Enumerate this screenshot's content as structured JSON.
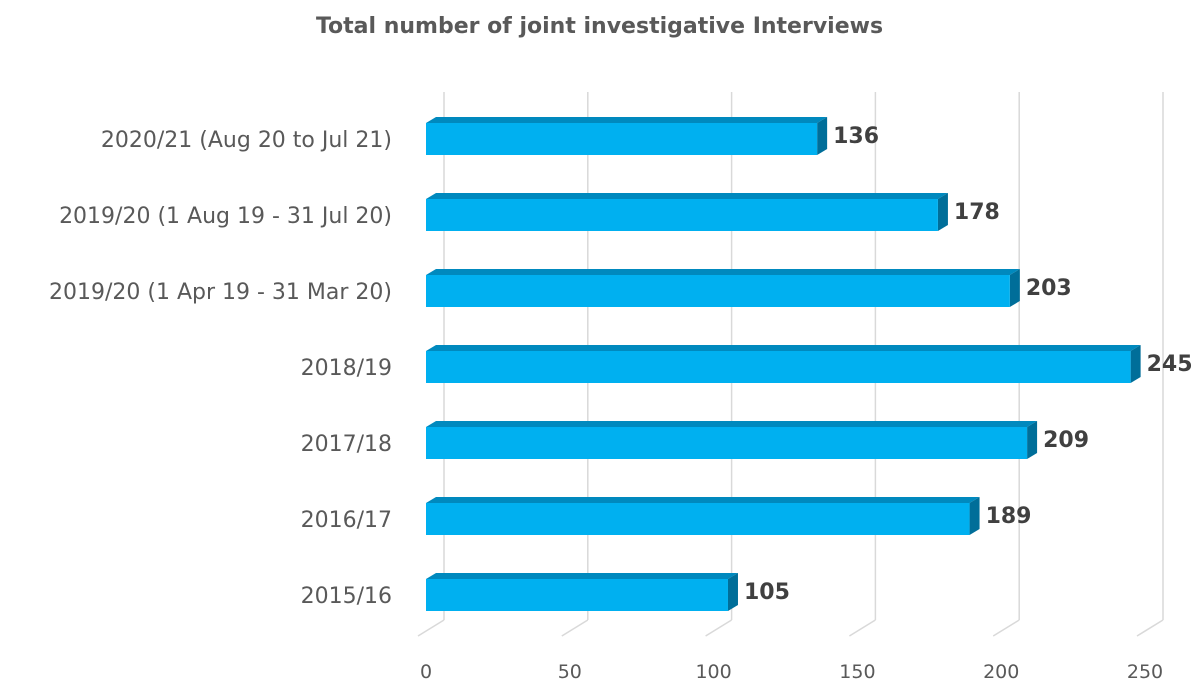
{
  "chart_data": {
    "type": "bar",
    "orientation": "horizontal",
    "title": "Total number of joint investigative Interviews",
    "xlabel": "",
    "ylabel": "",
    "categories": [
      "2020/21 (Aug 20 to Jul 21)",
      "2019/20 (1 Aug 19 - 31 Jul 20)",
      "2019/20 (1 Apr 19 - 31 Mar 20)",
      "2018/19",
      "2017/18",
      "2016/17",
      "2015/16"
    ],
    "values": [
      136,
      178,
      203,
      245,
      209,
      189,
      105
    ],
    "xlim": [
      0,
      250
    ],
    "xticks": [
      0,
      50,
      100,
      150,
      200,
      250
    ],
    "grid": true,
    "legend": "none",
    "colors": {
      "bar_front": "#00B0F0",
      "bar_top": "#0089BE",
      "bar_side": "#006E99",
      "grid": "#D9D9D9",
      "text": "#595959",
      "data_label": "#404040"
    }
  }
}
